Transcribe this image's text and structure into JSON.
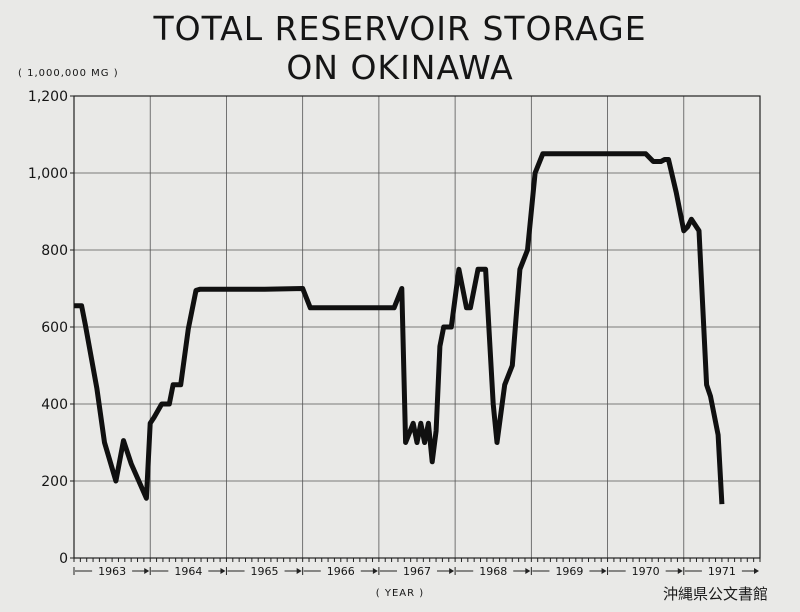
{
  "chart_data": {
    "type": "line",
    "title_lines": [
      "TOTAL RESERVOIR STORAGE",
      "ON OKINAWA"
    ],
    "unit_label": "( 1,000,000 MG )",
    "xlabel": "( YEAR )",
    "ylim": [
      0,
      1200
    ],
    "yticks": [
      0,
      200,
      400,
      600,
      800,
      1000,
      1200
    ],
    "ytick_labels": [
      "0",
      "200",
      "400",
      "600",
      "800",
      "1,000",
      "1,200"
    ],
    "xlim": [
      1963,
      1972
    ],
    "categories": [
      "1963",
      "1964",
      "1965",
      "1966",
      "1967",
      "1968",
      "1969",
      "1970",
      "1971"
    ],
    "grid": true,
    "series": [
      {
        "x": [
          1963.0,
          1963.1,
          1963.15,
          1963.3,
          1963.4,
          1963.55,
          1963.65,
          1963.75,
          1963.95,
          1964.0,
          1964.05,
          1964.15,
          1964.25,
          1964.3,
          1964.4,
          1964.5,
          1964.6,
          1964.65,
          1964.75,
          1965.0,
          1965.5,
          1966.0,
          1966.1,
          1966.5,
          1967.0,
          1967.2,
          1967.3,
          1967.35,
          1967.45,
          1967.5,
          1967.55,
          1967.6,
          1967.65,
          1967.7,
          1967.75,
          1967.8,
          1967.85,
          1967.95,
          1968.05,
          1968.15,
          1968.2,
          1968.3,
          1968.4,
          1968.5,
          1968.55,
          1968.65,
          1968.75,
          1968.85,
          1968.95,
          1969.05,
          1969.15,
          1969.2,
          1969.25,
          1969.35,
          1969.4,
          1969.5,
          1969.6,
          1970.0,
          1970.4,
          1970.5,
          1970.6,
          1970.7,
          1970.75,
          1970.8,
          1970.9,
          1971.0,
          1971.05,
          1971.1,
          1971.2,
          1971.3,
          1971.35,
          1971.45,
          1971.5
        ],
        "values": [
          655,
          655,
          605,
          440,
          300,
          200,
          305,
          245,
          155,
          350,
          365,
          400,
          400,
          450,
          450,
          595,
          695,
          698,
          698,
          698,
          698,
          700,
          650,
          650,
          650,
          650,
          700,
          300,
          350,
          300,
          350,
          300,
          350,
          250,
          330,
          550,
          600,
          600,
          750,
          650,
          650,
          750,
          750,
          400,
          300,
          450,
          500,
          750,
          800,
          1000,
          1050,
          1050,
          1050,
          1050,
          1050,
          1050,
          1050,
          1050,
          1050,
          1050,
          1030,
          1030,
          1035,
          1035,
          950,
          850,
          860,
          880,
          850,
          450,
          420,
          320,
          140
        ]
      }
    ],
    "watermark": "沖縄県公文書館"
  }
}
